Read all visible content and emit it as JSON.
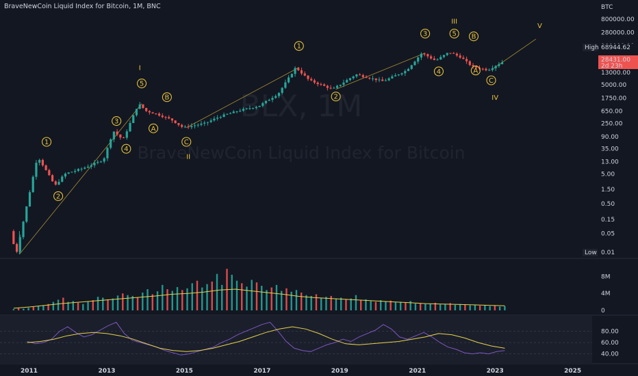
{
  "header": {
    "title": "BraveNewCoin Liquid Index for Bitcoin, 1M, BNC",
    "currency": "BTC",
    "watermark_symbol": "BLX, 1M",
    "watermark_name": "BraveNewCoin Liquid Index for Bitcoin"
  },
  "price_tags": {
    "high_label": "High",
    "high_value": "68944.62",
    "current_value": "28431.00",
    "countdown": "2d 23h",
    "low_label": "Low",
    "low_value": "0.01"
  },
  "colors": {
    "background": "#131722",
    "up": "#26a69a",
    "down": "#ef5350",
    "wave": "#e8c33a",
    "volume_ma": "#e8d44d",
    "rsi": "#7e57c2",
    "rsi_ma": "#e8d44d"
  },
  "chart_data": [
    {
      "type": "candlestick",
      "scale": "log",
      "y_ticks": [
        "800000.00",
        "280000.00",
        "100000.00",
        "35000.00",
        "13000.00",
        "5000.00",
        "1750.00",
        "650.00",
        "250.00",
        "90.00",
        "35.00",
        "13.00",
        "5.00",
        "1.50",
        "0.50",
        "0.15",
        "0.05"
      ],
      "x_ticks": [
        "2011",
        "2013",
        "2015",
        "2017",
        "2019",
        "2021",
        "2023",
        "2025"
      ],
      "x_range": [
        2010.25,
        2025.5
      ],
      "y_range": [
        0.01,
        1500000
      ],
      "anchors": [
        [
          2010.6,
          0.06
        ],
        [
          2010.75,
          0.01
        ],
        [
          2011.3,
          20
        ],
        [
          2011.75,
          2
        ],
        [
          2012.0,
          5
        ],
        [
          2012.5,
          8
        ],
        [
          2013.0,
          15
        ],
        [
          2013.25,
          140
        ],
        [
          2013.5,
          70
        ],
        [
          2013.9,
          1150
        ],
        [
          2014.1,
          650
        ],
        [
          2014.4,
          500
        ],
        [
          2014.75,
          330
        ],
        [
          2015.05,
          180
        ],
        [
          2015.6,
          250
        ],
        [
          2016.0,
          430
        ],
        [
          2016.5,
          680
        ],
        [
          2017.0,
          960
        ],
        [
          2017.5,
          2500
        ],
        [
          2017.95,
          19000
        ],
        [
          2018.3,
          7000
        ],
        [
          2018.9,
          3500
        ],
        [
          2019.5,
          11000
        ],
        [
          2020.2,
          6500
        ],
        [
          2020.8,
          15000
        ],
        [
          2021.2,
          58000
        ],
        [
          2021.55,
          32000
        ],
        [
          2021.9,
          62000
        ],
        [
          2022.2,
          42000
        ],
        [
          2022.5,
          20000
        ],
        [
          2022.9,
          15500
        ],
        [
          2023.25,
          28431
        ]
      ],
      "ohlc_note": "monthly"
    },
    {
      "type": "bar",
      "name": "Volume",
      "y_ticks": [
        "8M",
        "4M",
        "0"
      ],
      "y_range": [
        0,
        10
      ],
      "values_m": [
        0.3,
        0.5,
        0.4,
        0.6,
        0.8,
        1.0,
        1.2,
        1.5,
        2.0,
        2.5,
        3.0,
        2.0,
        2.2,
        1.8,
        1.5,
        2.0,
        2.4,
        3.2,
        3.0,
        2.6,
        2.8,
        3.5,
        4.0,
        3.6,
        3.4,
        3.0,
        4.2,
        5.0,
        3.8,
        4.5,
        6.0,
        5.0,
        4.6,
        5.5,
        4.8,
        5.2,
        6.4,
        7.0,
        5.4,
        6.2,
        6.8,
        8.6,
        6.0,
        9.8,
        8.4,
        7.0,
        6.4,
        5.6,
        7.2,
        6.6,
        5.8,
        4.8,
        5.4,
        6.0,
        4.6,
        5.2,
        4.4,
        4.8,
        4.2,
        3.6,
        3.4,
        3.8,
        3.0,
        3.2,
        3.4,
        2.8,
        3.0,
        2.6,
        2.8,
        3.6,
        2.4,
        2.6,
        2.2,
        2.0,
        2.4,
        2.1,
        2.3,
        1.9,
        2.0,
        1.8,
        2.2,
        1.6,
        1.7,
        1.5,
        1.6,
        1.8,
        1.4,
        1.5,
        1.7,
        1.3,
        1.5,
        1.4,
        1.2,
        1.3,
        1.1,
        1.2,
        1.0,
        1.1,
        0.9,
        1.0
      ],
      "ma_m": [
        0.5,
        0.8,
        1.2,
        1.6,
        1.9,
        2.2,
        2.5,
        2.8,
        3.1,
        3.4,
        3.8,
        4.0,
        4.3,
        4.8,
        5.0,
        4.6,
        4.2,
        3.8,
        3.3,
        3.0,
        2.8,
        2.6,
        2.4,
        2.2,
        2.0,
        1.8,
        1.6,
        1.5,
        1.4,
        1.3,
        1.2,
        1.1
      ]
    },
    {
      "type": "line",
      "name": "RSI",
      "y_ticks": [
        "80.00",
        "60.00",
        "40.00"
      ],
      "y_range": [
        25,
        105
      ],
      "values": [
        62,
        58,
        60,
        66,
        80,
        88,
        78,
        70,
        74,
        82,
        90,
        96,
        76,
        64,
        60,
        56,
        52,
        46,
        42,
        38,
        40,
        44,
        48,
        52,
        60,
        66,
        74,
        80,
        86,
        92,
        96,
        80,
        62,
        50,
        46,
        44,
        50,
        56,
        60,
        66,
        62,
        70,
        76,
        82,
        92,
        84,
        70,
        66,
        72,
        78,
        70,
        60,
        52,
        48,
        42,
        40,
        42,
        40,
        44,
        46
      ],
      "ma": [
        60,
        62,
        66,
        72,
        76,
        78,
        76,
        72,
        66,
        58,
        50,
        46,
        44,
        46,
        50,
        56,
        62,
        70,
        78,
        84,
        88,
        84,
        76,
        66,
        58,
        56,
        58,
        60,
        62,
        66,
        70,
        76,
        74,
        68,
        60,
        54,
        50
      ]
    }
  ],
  "wave_labels": {
    "circled": [
      "1",
      "2",
      "3",
      "4",
      "5",
      "A",
      "B",
      "C",
      "1",
      "2",
      "3",
      "4",
      "5",
      "A",
      "B",
      "C"
    ],
    "roman": [
      "I",
      "II",
      "III",
      "IV",
      "V"
    ]
  }
}
